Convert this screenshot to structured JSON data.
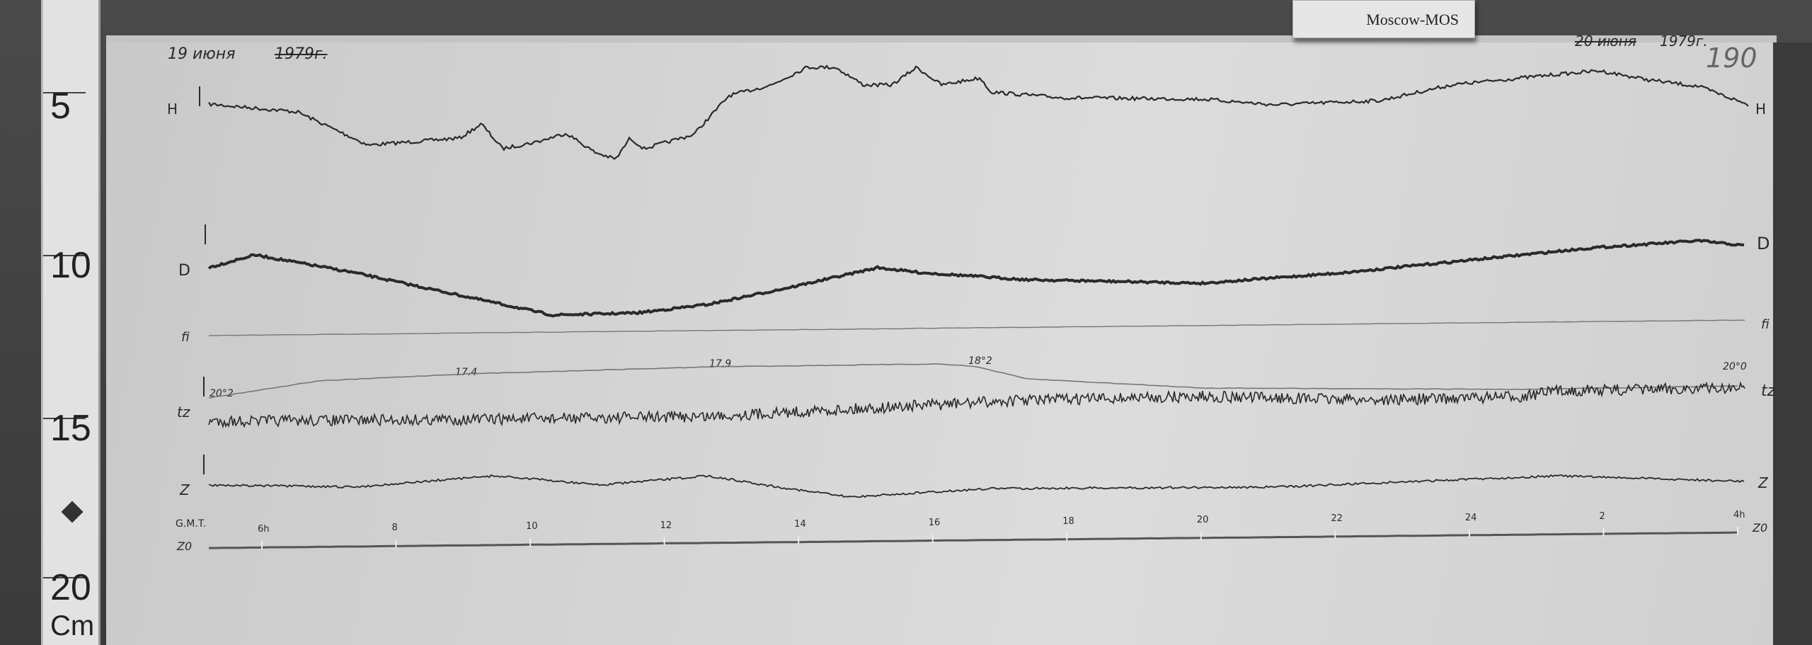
{
  "station_label": "Moscow-MOS",
  "ruler": {
    "marks": [
      "5",
      "10",
      "15",
      "20"
    ],
    "unit": "Cm"
  },
  "header": {
    "start_date": "19 июня",
    "start_year": "1979г.",
    "end_date": "20 июня",
    "end_year": "1979г.",
    "sheet_number": "190"
  },
  "traces": {
    "H": {
      "label_left": "H",
      "label_right": "H"
    },
    "D": {
      "label_left": "D",
      "label_right": "D"
    },
    "baseline": {
      "label_left": "fi",
      "label_right": "fi"
    },
    "tz": {
      "label_left": "tz",
      "label_right": "tz",
      "temperatures": [
        "20°2",
        "17.4",
        "17.9",
        "18°2",
        "20°0"
      ]
    },
    "Z": {
      "label_left": "Z",
      "label_right": "Z"
    }
  },
  "time_axis": {
    "label": "G.M.T.",
    "axis_label_left": "Z0",
    "axis_label_right": "Z0",
    "ticks": [
      "6h",
      "8",
      "10",
      "12",
      "14",
      "16",
      "18",
      "20",
      "22",
      "24",
      "2",
      "4h"
    ]
  },
  "colors": {
    "paper": "#d6d6d6",
    "ink": "#2a2a2a",
    "board": "#3e3e3e"
  }
}
